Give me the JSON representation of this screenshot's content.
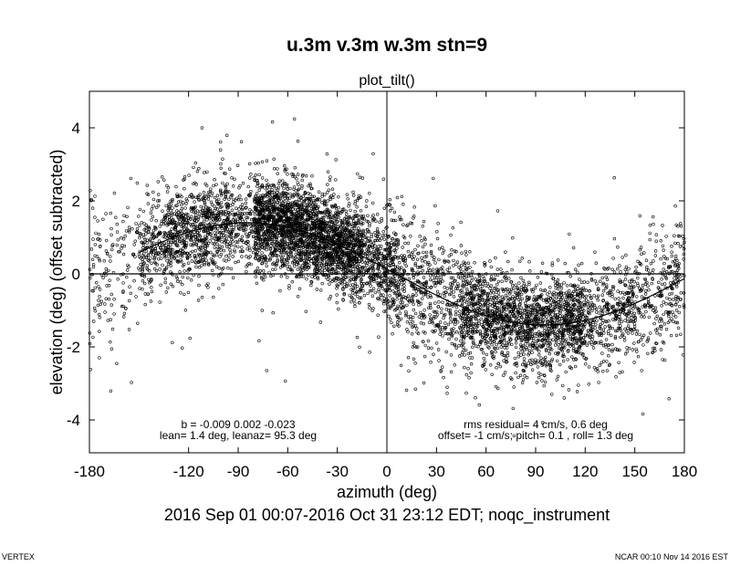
{
  "header": {
    "title": "u.3m v.3m w.3m stn=9",
    "subtitle": "plot_tilt()"
  },
  "chart_data": {
    "type": "scatter",
    "xlabel": "azimuth (deg)",
    "ylabel": "elevation (deg)   (offset subtracted)",
    "xlim": [
      -180,
      180
    ],
    "ylim": [
      -4.9,
      5.0
    ],
    "x_ticks": [
      -180,
      -120,
      -90,
      -60,
      -30,
      0,
      30,
      60,
      90,
      120,
      150,
      180
    ],
    "x_tick_labels": [
      "-180",
      "-120",
      "-90",
      "-60",
      "-30",
      "0",
      "30",
      "60",
      "90",
      "120",
      "150",
      "180"
    ],
    "y_ticks": [
      -4,
      -2,
      0,
      2,
      4
    ],
    "y_tick_labels": [
      "-4",
      "-2",
      "0",
      "2",
      "4"
    ],
    "fit_curve": {
      "amplitude_deg": 1.4,
      "lean_azimuth_deg": 95.3
    },
    "reference_lines": {
      "y": 0,
      "x": 0
    },
    "grid": false,
    "annotations": {
      "left_line1": "b = -0.009  0.002 -0.023",
      "left_line2": "lean= 1.4 deg, leanaz= 95.3 deg",
      "right_line1": "rms residual= 4 cm/s, 0.6 deg",
      "right_line2": "offset= -1 cm/s; pitch= 0.1 , roll= 1.3 deg"
    }
  },
  "footer": {
    "time_range": "2016 Sep 01 00:07-2016 Oct 31 23:12 EDT; noqc_instrument",
    "left_label": "VERTEX",
    "right_label": "NCAR 00:10 Nov 14 2016 EST"
  }
}
